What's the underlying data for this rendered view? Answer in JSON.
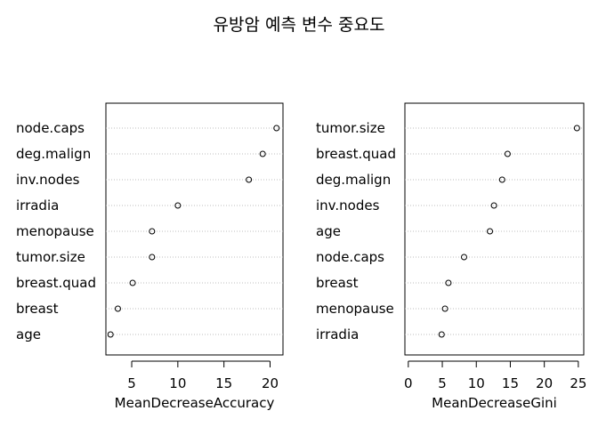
{
  "title": "유방암 예측 변수 중요도",
  "chart_data": [
    {
      "type": "scatter",
      "xlabel": "MeanDecreaseAccuracy",
      "ylabel": "",
      "xlim": [
        2.2,
        21.4
      ],
      "xticks": [
        5,
        10,
        15,
        20
      ],
      "grid": "dotted horizontal",
      "categories": [
        "node.caps",
        "deg.malign",
        "inv.nodes",
        "irradia",
        "menopause",
        "tumor.size",
        "breast.quad",
        "breast",
        "age"
      ],
      "values": [
        20.7,
        19.2,
        17.7,
        10.0,
        7.2,
        7.2,
        5.1,
        3.5,
        2.7
      ]
    },
    {
      "type": "scatter",
      "xlabel": "MeanDecreaseGini",
      "ylabel": "",
      "xlim": [
        -0.5,
        25.8
      ],
      "xticks": [
        0,
        5,
        10,
        15,
        20,
        25
      ],
      "grid": "dotted horizontal",
      "categories": [
        "tumor.size",
        "breast.quad",
        "deg.malign",
        "inv.nodes",
        "age",
        "node.caps",
        "breast",
        "menopause",
        "irradia"
      ],
      "values": [
        24.8,
        14.6,
        13.8,
        12.6,
        12.0,
        8.2,
        5.9,
        5.4,
        4.9
      ]
    }
  ]
}
